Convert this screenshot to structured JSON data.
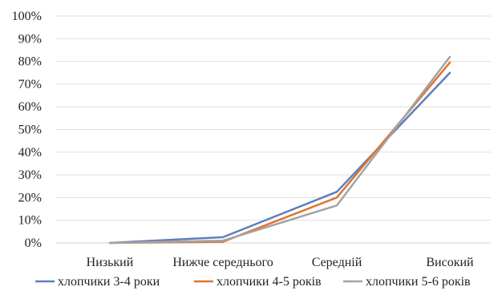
{
  "chart_data": {
    "type": "line",
    "categories": [
      "Низький",
      "Нижче середнього",
      "Середній",
      "Високий"
    ],
    "series": [
      {
        "name": "хлопчики 3-4 роки",
        "color": "#5b7fbf",
        "values": [
          0,
          2.5,
          22.5,
          75
        ]
      },
      {
        "name": "хлопчики 4-5 років",
        "color": "#e0742a",
        "values": [
          0,
          0.5,
          20,
          79.5
        ]
      },
      {
        "name": "хлопчики 5-6 років",
        "color": "#a3a3a3",
        "values": [
          0,
          1,
          16.5,
          82
        ]
      }
    ],
    "ylim": [
      0,
      100
    ],
    "yticks": [
      "0%",
      "10%",
      "20%",
      "30%",
      "40%",
      "50%",
      "60%",
      "70%",
      "80%",
      "90%",
      "100%"
    ],
    "grid": true,
    "legend": "bottom"
  }
}
